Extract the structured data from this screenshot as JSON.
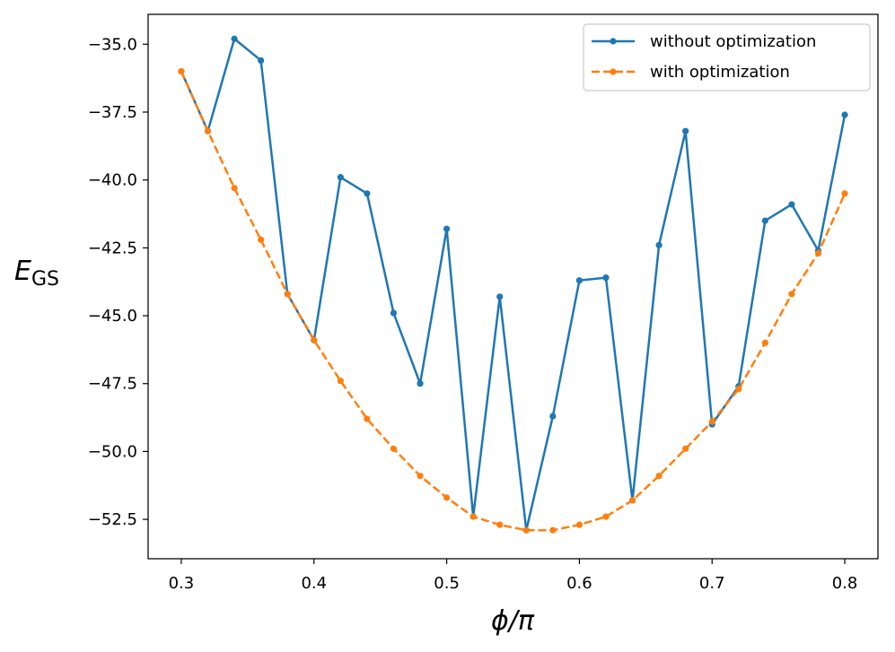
{
  "chart_data": {
    "type": "line",
    "title": "",
    "xlabel": "ϕ/π",
    "ylabel": {
      "main": "E",
      "sub": "GS"
    },
    "xlim": [
      0.275,
      0.825
    ],
    "ylim": [
      -53.95,
      -33.9
    ],
    "xticks": [
      0.3,
      0.4,
      0.5,
      0.6,
      0.7,
      0.8
    ],
    "xtick_labels": [
      "0.3",
      "0.4",
      "0.5",
      "0.6",
      "0.7",
      "0.8"
    ],
    "yticks": [
      -35.0,
      -37.5,
      -40.0,
      -42.5,
      -45.0,
      -47.5,
      -50.0,
      -52.5
    ],
    "ytick_labels": [
      "−35.0",
      "−37.5",
      "−40.0",
      "−42.5",
      "−45.0",
      "−47.5",
      "−50.0",
      "−52.5"
    ],
    "grid": false,
    "legend_position": "top-right",
    "x": [
      0.3,
      0.32,
      0.34,
      0.36,
      0.38,
      0.4,
      0.42,
      0.44,
      0.46,
      0.48,
      0.5,
      0.52,
      0.54,
      0.56,
      0.58,
      0.6,
      0.62,
      0.64,
      0.66,
      0.68,
      0.7,
      0.72,
      0.74,
      0.76,
      0.78,
      0.8
    ],
    "series": [
      {
        "name": "without optimization",
        "color": "#1f77b4",
        "style": "solid",
        "values": [
          -36.0,
          -38.2,
          -34.8,
          -35.6,
          -44.2,
          -45.9,
          -39.9,
          -40.5,
          -44.9,
          -47.5,
          -41.8,
          -52.4,
          -44.3,
          -52.9,
          -48.7,
          -43.7,
          -43.6,
          -51.8,
          -42.4,
          -38.2,
          -49.0,
          -47.6,
          -41.5,
          -40.9,
          -42.6,
          -37.6
        ]
      },
      {
        "name": "with optimization",
        "color": "#ff7f0e",
        "style": "dashed",
        "values": [
          -36.0,
          -38.2,
          -40.3,
          -42.2,
          -44.2,
          -45.9,
          -47.4,
          -48.8,
          -49.9,
          -50.9,
          -51.7,
          -52.4,
          -52.7,
          -52.9,
          -52.9,
          -52.7,
          -52.4,
          -51.8,
          -50.9,
          -49.9,
          -48.9,
          -47.7,
          -46.0,
          -44.2,
          -42.7,
          -40.5
        ]
      }
    ]
  }
}
